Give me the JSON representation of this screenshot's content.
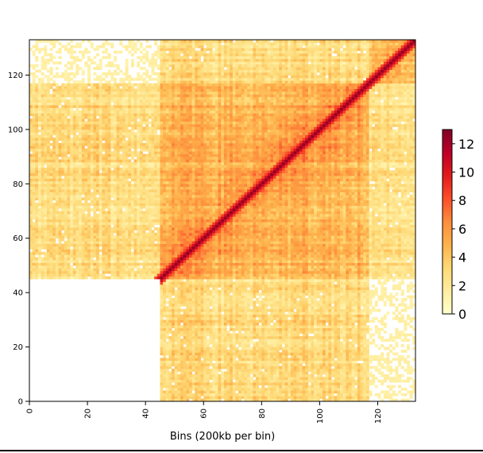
{
  "chart_data": {
    "type": "heatmap",
    "title": "",
    "xlabel": "Bins (200kb per bin)",
    "ylabel": "",
    "n_bins": 133,
    "xlim": [
      0,
      133
    ],
    "ylim": [
      0,
      133
    ],
    "x_ticks": [
      0,
      20,
      40,
      60,
      80,
      100,
      120
    ],
    "y_ticks": [
      0,
      20,
      40,
      60,
      80,
      100,
      120
    ],
    "colorbar": {
      "min": 0,
      "max": 13,
      "ticks": [
        0,
        2,
        4,
        6,
        8,
        10,
        12
      ],
      "colormap": [
        "#ffffcc",
        "#ffeda0",
        "#fed976",
        "#feb24c",
        "#fd8d3c",
        "#fc4e2a",
        "#e31a1c",
        "#bd0026",
        "#800026"
      ]
    },
    "blocks": [
      {
        "x_range": [
          0,
          45
        ],
        "y_range": [
          0,
          45
        ],
        "level": "empty"
      },
      {
        "x_range": [
          0,
          45
        ],
        "y_range": [
          117,
          133
        ],
        "level": "sparse"
      },
      {
        "x_range": [
          117,
          133
        ],
        "y_range": [
          0,
          45
        ],
        "level": "sparse"
      },
      {
        "x_range": [
          45,
          117
        ],
        "y_range": [
          45,
          117
        ],
        "level": "high"
      }
    ],
    "diagonal_value": 12.5
  }
}
